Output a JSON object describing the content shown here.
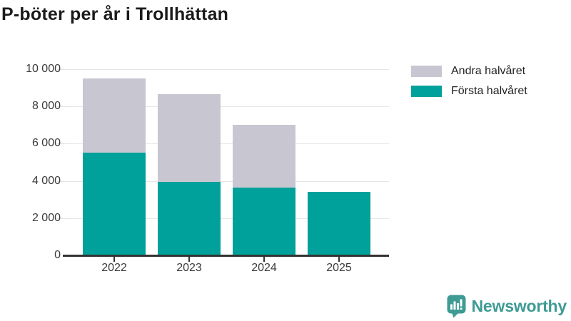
{
  "title": "P-böter per år i Trollhättan",
  "colors": {
    "first_half": "#00a19a",
    "second_half": "#c8c6d1",
    "axis": "#333333",
    "grid": "#e6e6e6",
    "brand": "#3e9b94"
  },
  "chart_data": {
    "type": "bar",
    "stacked": true,
    "title": "P-böter per år i Trollhättan",
    "xlabel": "",
    "ylabel": "",
    "categories": [
      "2022",
      "2023",
      "2024",
      "2025"
    ],
    "series": [
      {
        "name": "Första halvåret",
        "color_key": "first_half",
        "values": [
          5500,
          3950,
          3650,
          3400
        ]
      },
      {
        "name": "Andra halvåret",
        "color_key": "second_half",
        "values": [
          4000,
          4700,
          3350,
          0
        ]
      }
    ],
    "totals": [
      9500,
      8650,
      7000,
      3400
    ],
    "ylim": [
      0,
      10000
    ],
    "yticks": [
      0,
      2000,
      4000,
      6000,
      8000,
      10000
    ],
    "ytick_labels": [
      "0",
      "2 000",
      "4 000",
      "6 000",
      "8 000",
      "10 000"
    ],
    "grid": "horizontal",
    "legend_position": "top-right",
    "legend": [
      {
        "label": "Andra halvåret",
        "color_key": "second_half"
      },
      {
        "label": "Första halvåret",
        "color_key": "first_half"
      }
    ]
  },
  "branding": {
    "name": "Newsworthy",
    "logo_icon": "bar-chart-speech-bubble-icon"
  }
}
